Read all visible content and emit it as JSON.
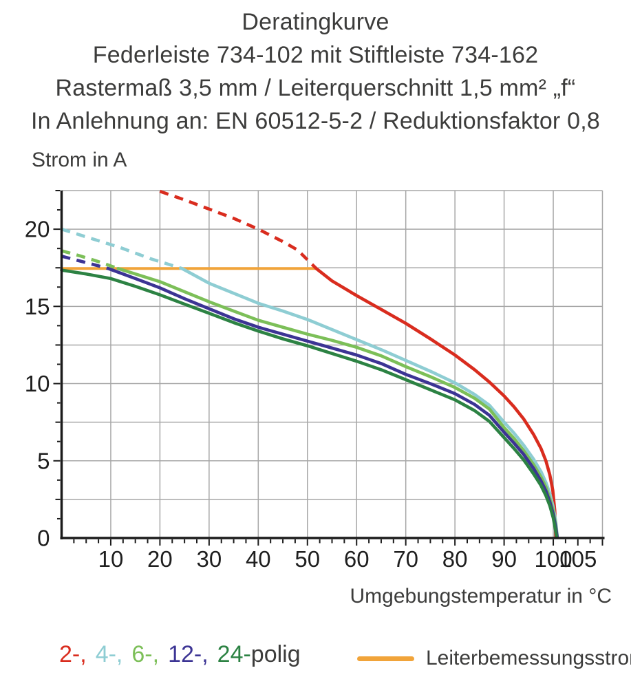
{
  "title": {
    "line1": "Deratingkurve",
    "line2": "Federleiste 734-102 mit Stiftleiste 734-162",
    "line3": "Rastermaß 3,5 mm / Leiterquerschnitt 1,5 mm² „f“",
    "line4": "In Anlehnung an: EN 60512-5-2 / Reduktionsfaktor 0,8"
  },
  "legend": {
    "pole_items": [
      {
        "text": "2-,",
        "color": "#d92c1e"
      },
      {
        "text": "4-,",
        "color": "#8ecdd3"
      },
      {
        "text": "6-,",
        "color": "#7cbf58"
      },
      {
        "text": "12-,",
        "color": "#3c3494"
      },
      {
        "text": "24-",
        "color": "#2c8243"
      }
    ],
    "suffix": "polig",
    "rated_label": "Leiterbemessungsstrom",
    "rated_color": "#f1a43a"
  },
  "chart_data": {
    "type": "line",
    "title": "Deratingkurve",
    "xlabel": "Umgebungstemperatur in °C",
    "ylabel": "Strom in A",
    "xlim": [
      0,
      110
    ],
    "ylim": [
      0,
      22.5
    ],
    "grid": true,
    "x_grid_step": 10,
    "y_grid_step": 2.5,
    "x_ticks": [
      10,
      20,
      30,
      40,
      50,
      60,
      70,
      80,
      90,
      100,
      105
    ],
    "y_ticks": [
      0,
      5,
      10,
      15,
      20
    ],
    "rated_current_A": 17.5,
    "colors": {
      "grid": "#a7a7a7",
      "axis": "#1b1b1b",
      "tick_label": "#1f1f1f"
    },
    "series": [
      {
        "name": "Leiterbemessungsstrom",
        "color": "#f1a43a",
        "width": 4,
        "solid": [
          [
            0,
            17.45
          ],
          [
            51.8,
            17.45
          ]
        ]
      },
      {
        "name": "2-polig",
        "color": "#d92c1e",
        "width": 4.6,
        "dashed": [
          [
            20,
            22.45
          ],
          [
            25,
            21.9
          ],
          [
            30,
            21.3
          ],
          [
            35,
            20.7
          ],
          [
            40,
            20.0
          ],
          [
            45,
            19.2
          ],
          [
            48,
            18.65
          ],
          [
            51.8,
            17.45
          ]
        ],
        "solid": [
          [
            51.8,
            17.45
          ],
          [
            55,
            16.65
          ],
          [
            60,
            15.7
          ],
          [
            65,
            14.8
          ],
          [
            70,
            13.9
          ],
          [
            75,
            12.9
          ],
          [
            80,
            11.85
          ],
          [
            84,
            10.9
          ],
          [
            87,
            10.1
          ],
          [
            90,
            9.2
          ],
          [
            92,
            8.5
          ],
          [
            94,
            7.7
          ],
          [
            96,
            6.7
          ],
          [
            97.5,
            5.8
          ],
          [
            98.5,
            5.0
          ],
          [
            99.3,
            4.1
          ],
          [
            99.9,
            3.1
          ],
          [
            100.3,
            1.8
          ],
          [
            100.5,
            0.1
          ]
        ]
      },
      {
        "name": "4-polig",
        "color": "#8ecdd3",
        "width": 4.6,
        "dashed": [
          [
            0,
            20.0
          ],
          [
            6,
            19.4
          ],
          [
            12,
            18.8
          ],
          [
            18,
            18.1
          ],
          [
            24.5,
            17.45
          ]
        ],
        "solid": [
          [
            24.5,
            17.45
          ],
          [
            30,
            16.5
          ],
          [
            35,
            15.85
          ],
          [
            40,
            15.2
          ],
          [
            45,
            14.7
          ],
          [
            50,
            14.15
          ],
          [
            55,
            13.5
          ],
          [
            60,
            12.85
          ],
          [
            65,
            12.2
          ],
          [
            70,
            11.5
          ],
          [
            75,
            10.8
          ],
          [
            80,
            10.05
          ],
          [
            84,
            9.3
          ],
          [
            87,
            8.6
          ],
          [
            90,
            7.5
          ],
          [
            92,
            6.8
          ],
          [
            94,
            6.0
          ],
          [
            96,
            5.1
          ],
          [
            97.5,
            4.3
          ],
          [
            98.5,
            3.6
          ],
          [
            99.3,
            2.9
          ],
          [
            100,
            2.0
          ],
          [
            100.5,
            1.1
          ],
          [
            100.8,
            0.1
          ]
        ]
      },
      {
        "name": "6-polig",
        "color": "#7cbf58",
        "width": 4.6,
        "dashed": [
          [
            0,
            18.6
          ],
          [
            4,
            18.25
          ],
          [
            8,
            17.85
          ],
          [
            11.5,
            17.45
          ]
        ],
        "solid": [
          [
            11.5,
            17.45
          ],
          [
            15,
            17.1
          ],
          [
            20,
            16.6
          ],
          [
            25,
            15.95
          ],
          [
            30,
            15.3
          ],
          [
            35,
            14.7
          ],
          [
            40,
            14.1
          ],
          [
            45,
            13.65
          ],
          [
            50,
            13.2
          ],
          [
            55,
            12.8
          ],
          [
            60,
            12.35
          ],
          [
            65,
            11.8
          ],
          [
            70,
            11.1
          ],
          [
            75,
            10.45
          ],
          [
            80,
            9.75
          ],
          [
            84,
            9.05
          ],
          [
            87,
            8.35
          ],
          [
            90,
            7.15
          ],
          [
            92,
            6.45
          ],
          [
            94,
            5.65
          ],
          [
            96,
            4.75
          ],
          [
            97.5,
            3.95
          ],
          [
            98.5,
            3.3
          ],
          [
            99.3,
            2.55
          ],
          [
            100,
            1.75
          ],
          [
            100.5,
            0.85
          ],
          [
            100.8,
            0.05
          ]
        ]
      },
      {
        "name": "12-polig",
        "color": "#3c3494",
        "width": 4.6,
        "dashed": [
          [
            0,
            18.25
          ],
          [
            3,
            18.0
          ],
          [
            6,
            17.75
          ],
          [
            9.5,
            17.45
          ]
        ],
        "solid": [
          [
            9.5,
            17.45
          ],
          [
            15,
            16.8
          ],
          [
            20,
            16.2
          ],
          [
            25,
            15.5
          ],
          [
            30,
            14.85
          ],
          [
            35,
            14.2
          ],
          [
            40,
            13.65
          ],
          [
            45,
            13.2
          ],
          [
            50,
            12.75
          ],
          [
            55,
            12.3
          ],
          [
            60,
            11.85
          ],
          [
            65,
            11.3
          ],
          [
            70,
            10.6
          ],
          [
            75,
            10.0
          ],
          [
            80,
            9.35
          ],
          [
            84,
            8.65
          ],
          [
            87,
            7.95
          ],
          [
            90,
            6.85
          ],
          [
            92,
            6.15
          ],
          [
            94,
            5.4
          ],
          [
            96,
            4.5
          ],
          [
            97.5,
            3.7
          ],
          [
            98.5,
            3.05
          ],
          [
            99.3,
            2.35
          ],
          [
            100,
            1.55
          ],
          [
            100.5,
            0.7
          ],
          [
            100.8,
            0.05
          ]
        ]
      },
      {
        "name": "24-polig",
        "color": "#2c8243",
        "width": 4.6,
        "solid": [
          [
            0,
            17.35
          ],
          [
            5,
            17.1
          ],
          [
            10,
            16.8
          ],
          [
            15,
            16.3
          ],
          [
            20,
            15.75
          ],
          [
            25,
            15.15
          ],
          [
            30,
            14.55
          ],
          [
            35,
            13.95
          ],
          [
            40,
            13.4
          ],
          [
            45,
            12.9
          ],
          [
            50,
            12.45
          ],
          [
            55,
            11.95
          ],
          [
            60,
            11.45
          ],
          [
            65,
            10.9
          ],
          [
            70,
            10.25
          ],
          [
            75,
            9.6
          ],
          [
            80,
            8.95
          ],
          [
            84,
            8.25
          ],
          [
            87,
            7.55
          ],
          [
            90,
            6.5
          ],
          [
            92,
            5.8
          ],
          [
            94,
            5.05
          ],
          [
            96,
            4.15
          ],
          [
            97.5,
            3.4
          ],
          [
            98.5,
            2.75
          ],
          [
            99.3,
            2.1
          ],
          [
            100,
            1.3
          ],
          [
            100.4,
            0.6
          ],
          [
            100.7,
            0.05
          ]
        ]
      }
    ]
  }
}
